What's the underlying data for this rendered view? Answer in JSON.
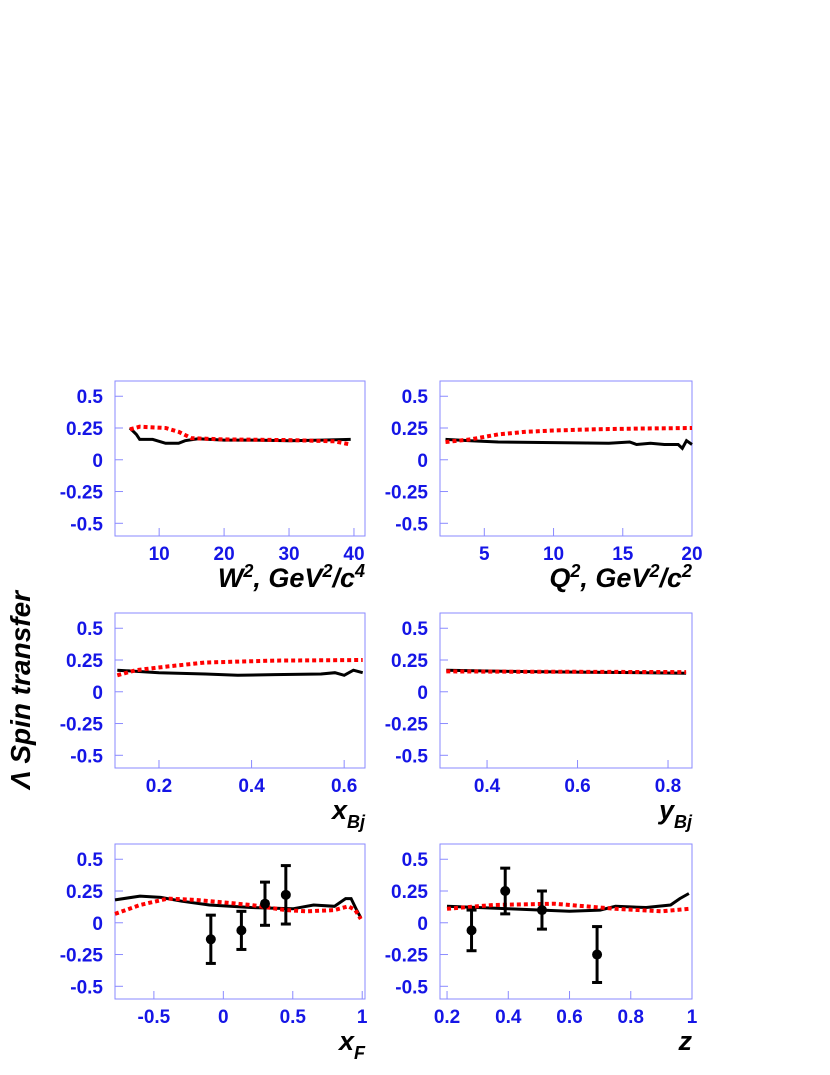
{
  "y_label": "Λ Spin transfer",
  "chart_data": [
    {
      "type": "line",
      "xlim": [
        3.2,
        41.7
      ],
      "xticks": [
        10,
        20,
        30,
        40
      ],
      "ylim": [
        -0.6,
        0.62
      ],
      "yticks": [
        -0.5,
        -0.25,
        0,
        0.25,
        0.5
      ],
      "x_label": [
        {
          "text": "W"
        },
        {
          "text": "2",
          "sup": true
        },
        {
          "text": ", GeV"
        },
        {
          "text": "2",
          "sup": true
        },
        {
          "text": "/c"
        },
        {
          "text": "4",
          "sup": true
        }
      ],
      "series": [
        {
          "color": "#000000",
          "x": [
            5.5,
            6.5,
            7,
            9,
            11,
            13,
            14,
            16,
            20,
            25,
            30,
            35,
            39.5
          ],
          "values": [
            0.25,
            0.2,
            0.16,
            0.16,
            0.13,
            0.13,
            0.15,
            0.165,
            0.155,
            0.155,
            0.15,
            0.155,
            0.16
          ]
        },
        {
          "color": "#ff0000",
          "dashed": true,
          "x": [
            5.5,
            7,
            11,
            13,
            15,
            20,
            30,
            37,
            39.5
          ],
          "values": [
            0.24,
            0.26,
            0.25,
            0.22,
            0.17,
            0.16,
            0.155,
            0.145,
            0.12
          ]
        }
      ]
    },
    {
      "type": "line",
      "xlim": [
        1.8,
        20
      ],
      "xticks": [
        5,
        10,
        15,
        20
      ],
      "ylim": [
        -0.6,
        0.62
      ],
      "yticks": [
        -0.5,
        -0.25,
        0,
        0.25,
        0.5
      ],
      "x_label": [
        {
          "text": "Q"
        },
        {
          "text": "2",
          "sup": true
        },
        {
          "text": ", GeV"
        },
        {
          "text": "2",
          "sup": true
        },
        {
          "text": "/c"
        },
        {
          "text": "2",
          "sup": true
        }
      ],
      "series": [
        {
          "color": "#000000",
          "x": [
            2.2,
            4,
            6,
            10,
            14,
            15.5,
            16,
            17,
            18,
            19,
            19.3,
            19.6,
            20
          ],
          "values": [
            0.16,
            0.15,
            0.14,
            0.135,
            0.13,
            0.14,
            0.12,
            0.13,
            0.12,
            0.12,
            0.09,
            0.15,
            0.12
          ]
        },
        {
          "color": "#ff0000",
          "dashed": true,
          "x": [
            2.2,
            4,
            6,
            8,
            10,
            13,
            16,
            20
          ],
          "values": [
            0.14,
            0.16,
            0.2,
            0.22,
            0.23,
            0.24,
            0.245,
            0.25
          ]
        }
      ]
    },
    {
      "type": "line",
      "xlim": [
        0.105,
        0.645
      ],
      "xticks": [
        0.2,
        0.4,
        0.6
      ],
      "ylim": [
        -0.6,
        0.62
      ],
      "yticks": [
        -0.5,
        -0.25,
        0,
        0.25,
        0.5
      ],
      "x_label": [
        {
          "text": "x"
        },
        {
          "text": "Bj",
          "sub": true
        }
      ],
      "series": [
        {
          "color": "#000000",
          "x": [
            0.11,
            0.2,
            0.3,
            0.37,
            0.45,
            0.55,
            0.58,
            0.6,
            0.62,
            0.64
          ],
          "values": [
            0.17,
            0.15,
            0.14,
            0.13,
            0.135,
            0.14,
            0.15,
            0.13,
            0.17,
            0.15
          ]
        },
        {
          "color": "#ff0000",
          "dashed": true,
          "x": [
            0.11,
            0.15,
            0.22,
            0.3,
            0.45,
            0.64
          ],
          "values": [
            0.13,
            0.17,
            0.2,
            0.23,
            0.245,
            0.25
          ]
        }
      ]
    },
    {
      "type": "line",
      "xlim": [
        0.296,
        0.853
      ],
      "xticks": [
        0.4,
        0.6,
        0.8
      ],
      "ylim": [
        -0.6,
        0.62
      ],
      "yticks": [
        -0.5,
        -0.25,
        0,
        0.25,
        0.5
      ],
      "x_label": [
        {
          "text": "y"
        },
        {
          "text": "Bj",
          "sub": true
        }
      ],
      "series": [
        {
          "color": "#000000",
          "x": [
            0.31,
            0.45,
            0.6,
            0.75,
            0.84
          ],
          "values": [
            0.17,
            0.16,
            0.155,
            0.15,
            0.145
          ]
        },
        {
          "color": "#ff0000",
          "dashed": true,
          "x": [
            0.31,
            0.45,
            0.6,
            0.75,
            0.84
          ],
          "values": [
            0.16,
            0.158,
            0.157,
            0.156,
            0.155
          ]
        }
      ]
    },
    {
      "type": "line",
      "xlim": [
        -0.78,
        1.02
      ],
      "xticks": [
        -0.5,
        0,
        0.5,
        1
      ],
      "ylim": [
        -0.6,
        0.62
      ],
      "yticks": [
        -0.5,
        -0.25,
        0,
        0.25,
        0.5
      ],
      "x_label": [
        {
          "text": "x"
        },
        {
          "text": "F",
          "sub": true
        }
      ],
      "series": [
        {
          "color": "#000000",
          "x": [
            -0.78,
            -0.6,
            -0.45,
            -0.3,
            -0.1,
            0.2,
            0.5,
            0.65,
            0.8,
            0.88,
            0.92,
            0.96,
            0.99
          ],
          "values": [
            0.18,
            0.21,
            0.2,
            0.17,
            0.14,
            0.12,
            0.11,
            0.14,
            0.13,
            0.19,
            0.19,
            0.1,
            0.04
          ]
        },
        {
          "color": "#ff0000",
          "dashed": true,
          "x": [
            -0.78,
            -0.6,
            -0.4,
            -0.2,
            0,
            0.2,
            0.45,
            0.6,
            0.8,
            0.9,
            0.95,
            0.99
          ],
          "values": [
            0.07,
            0.14,
            0.19,
            0.18,
            0.16,
            0.14,
            0.1,
            0.09,
            0.1,
            0.13,
            0.1,
            0.03
          ]
        }
      ],
      "points": {
        "color": "#000000",
        "x": [
          -0.09,
          0.13,
          0.3,
          0.45
        ],
        "values": [
          -0.13,
          -0.06,
          0.15,
          0.22
        ],
        "errors": [
          0.19,
          0.15,
          0.17,
          0.23
        ]
      }
    },
    {
      "type": "line",
      "xlim": [
        0.177,
        1
      ],
      "xticks": [
        0.2,
        0.4,
        0.6,
        0.8,
        1
      ],
      "ylim": [
        -0.6,
        0.62
      ],
      "yticks": [
        -0.5,
        -0.25,
        0,
        0.25,
        0.5
      ],
      "x_label": [
        {
          "text": "z"
        }
      ],
      "series": [
        {
          "color": "#000000",
          "x": [
            0.2,
            0.4,
            0.6,
            0.7,
            0.75,
            0.85,
            0.93,
            0.96,
            0.99
          ],
          "values": [
            0.13,
            0.11,
            0.09,
            0.1,
            0.13,
            0.12,
            0.14,
            0.19,
            0.23
          ]
        },
        {
          "color": "#ff0000",
          "dashed": true,
          "x": [
            0.2,
            0.35,
            0.55,
            0.75,
            0.9,
            0.99
          ],
          "values": [
            0.11,
            0.14,
            0.15,
            0.11,
            0.09,
            0.11
          ]
        }
      ],
      "points": {
        "color": "#000000",
        "x": [
          0.28,
          0.39,
          0.51,
          0.69
        ],
        "values": [
          -0.06,
          0.25,
          0.1,
          -0.25
        ],
        "errors": [
          0.16,
          0.18,
          0.15,
          0.22
        ]
      }
    }
  ]
}
